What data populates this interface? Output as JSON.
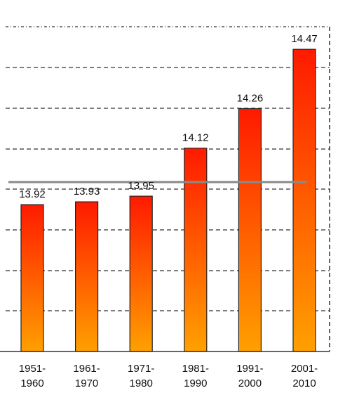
{
  "chart_data": {
    "type": "bar",
    "categories": [
      [
        "1951-",
        "1960"
      ],
      [
        "1961-",
        "1970"
      ],
      [
        "1971-",
        "1980"
      ],
      [
        "1981-",
        "1990"
      ],
      [
        "1991-",
        "2000"
      ],
      [
        "2001-",
        "2010"
      ]
    ],
    "values": [
      13.92,
      13.93,
      13.95,
      14.12,
      14.26,
      14.47
    ],
    "value_labels": [
      "13.92",
      "13.93",
      "13.95",
      "14.12",
      "14.26",
      "14.47"
    ],
    "reference_line": {
      "value": 14.0,
      "color": "#8a8a8a"
    },
    "y_range": [
      13.4,
      14.55
    ],
    "grid": "dashed horizontal",
    "colors": {
      "bar_top": "#ff1a00",
      "bar_bottom": "#ffa000",
      "bar_outline": "#222222",
      "grid": "#333333",
      "axis": "#333333"
    }
  }
}
